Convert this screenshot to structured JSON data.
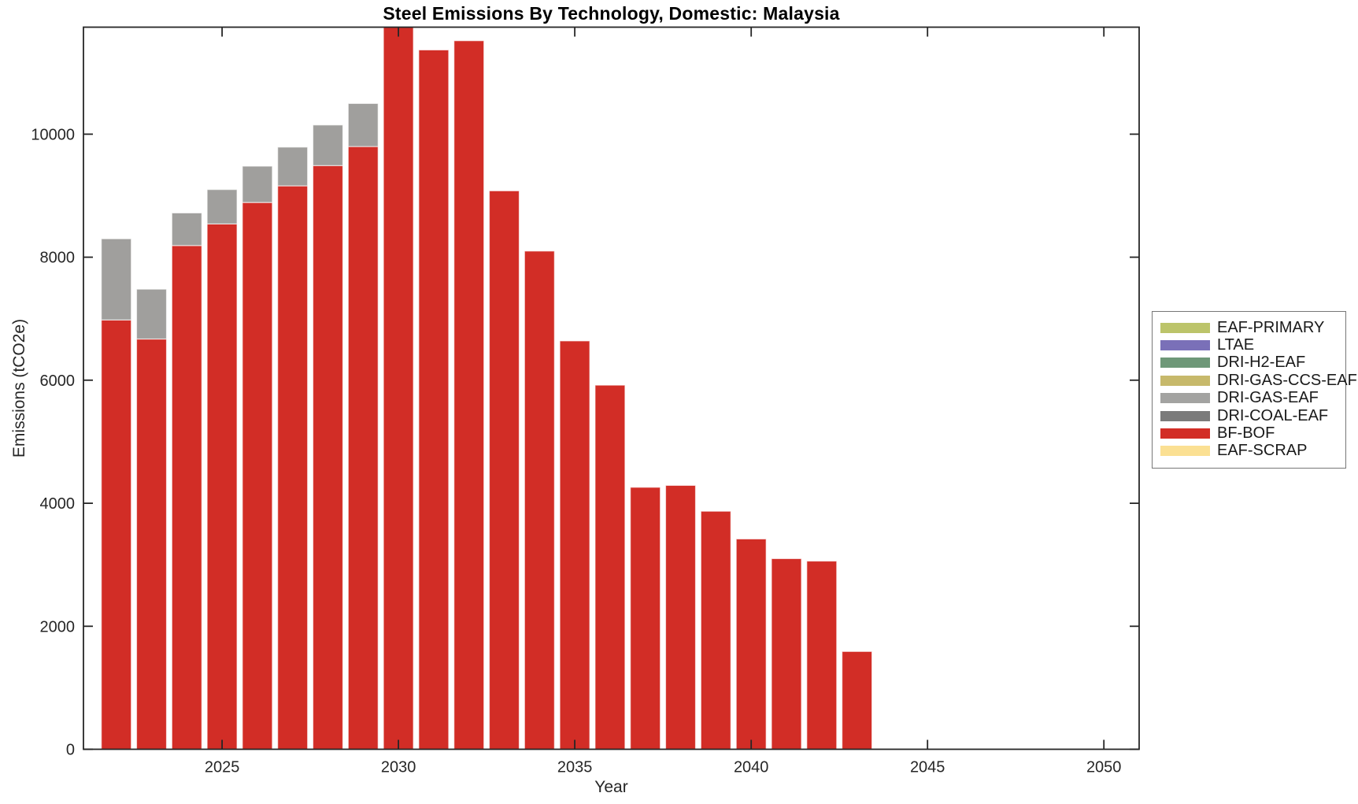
{
  "chart_data": {
    "type": "bar",
    "stacked": true,
    "title": "Steel Emissions By Technology, Domestic: Malaysia",
    "xlabel": "Year",
    "ylabel": "Emissions (tCO2e)",
    "xlim": [
      2021.07,
      2051.0
    ],
    "ylim": [
      0,
      11740
    ],
    "x_ticks": [
      2025,
      2030,
      2035,
      2040,
      2045,
      2050
    ],
    "y_ticks": [
      0,
      2000,
      4000,
      6000,
      8000,
      10000
    ],
    "grid": false,
    "legend_position": "outside-right",
    "categories": [
      2022,
      2023,
      2024,
      2025,
      2026,
      2027,
      2028,
      2029,
      2030,
      2031,
      2032,
      2033,
      2034,
      2035,
      2036,
      2037,
      2038,
      2039,
      2040,
      2041,
      2042,
      2043
    ],
    "series": [
      {
        "name": "BF-BOF",
        "color": "#d22d26",
        "values": [
          6980,
          6670,
          8190,
          8540,
          8890,
          9160,
          9490,
          9800,
          11740,
          11370,
          11520,
          9080,
          8100,
          6640,
          5920,
          4260,
          4290,
          3870,
          3420,
          3100,
          3060,
          1590
        ]
      },
      {
        "name": "DRI-GAS-EAF",
        "color": "#a09f9d",
        "values": [
          1320,
          810,
          530,
          560,
          590,
          630,
          660,
          700,
          0,
          0,
          0,
          0,
          0,
          0,
          0,
          0,
          0,
          0,
          0,
          0,
          0,
          0
        ]
      }
    ],
    "legend": [
      {
        "label": "EAF-PRIMARY",
        "color": "#bcc46a"
      },
      {
        "label": "LTAE",
        "color": "#7a70b8"
      },
      {
        "label": "DRI-H2-EAF",
        "color": "#6e9878"
      },
      {
        "label": "DRI-GAS-CCS-EAF",
        "color": "#c7b96b"
      },
      {
        "label": "DRI-GAS-EAF",
        "color": "#a3a3a1"
      },
      {
        "label": "DRI-COAL-EAF",
        "color": "#7b7b7b"
      },
      {
        "label": "BF-BOF",
        "color": "#d22d26"
      },
      {
        "label": "EAF-SCRAP",
        "color": "#fbe093"
      }
    ]
  },
  "colors": {
    "axis": "#262626",
    "tick_label": "#262626",
    "background": "#ffffff"
  }
}
